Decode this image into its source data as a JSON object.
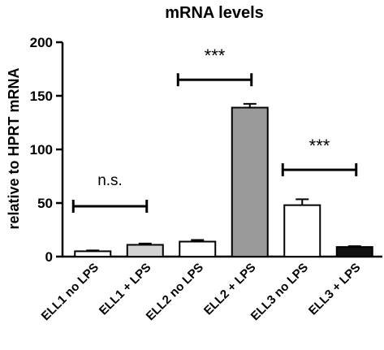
{
  "chart_data": {
    "type": "bar",
    "title": "mRNA levels",
    "xlabel": "",
    "ylabel": "relative to HPRT mRNA",
    "ylim": [
      0,
      200
    ],
    "yticks": [
      "0",
      "50",
      "100",
      "150",
      "200"
    ],
    "categories": [
      "ELL1 no LPS",
      "ELL1 + LPS",
      "ELL2 no LPS",
      "ELL2 + LPS",
      "ELL3 no LPS",
      "ELL3 + LPS"
    ],
    "values": [
      5,
      11,
      14,
      139,
      48,
      9
    ],
    "errors": [
      0.8,
      1.2,
      1.5,
      3.5,
      5.5,
      0.8
    ],
    "bar_colors": [
      "#ffffff",
      "#d3d3d3",
      "#ffffff",
      "#9a9a9a",
      "#ffffff",
      "#111111"
    ],
    "grid": false,
    "significance": [
      {
        "from": 0,
        "to": 1,
        "level": 47,
        "label": "n.s."
      },
      {
        "from": 2,
        "to": 3,
        "level": 165,
        "label": "***"
      },
      {
        "from": 4,
        "to": 5,
        "level": 81,
        "label": "***"
      }
    ]
  }
}
